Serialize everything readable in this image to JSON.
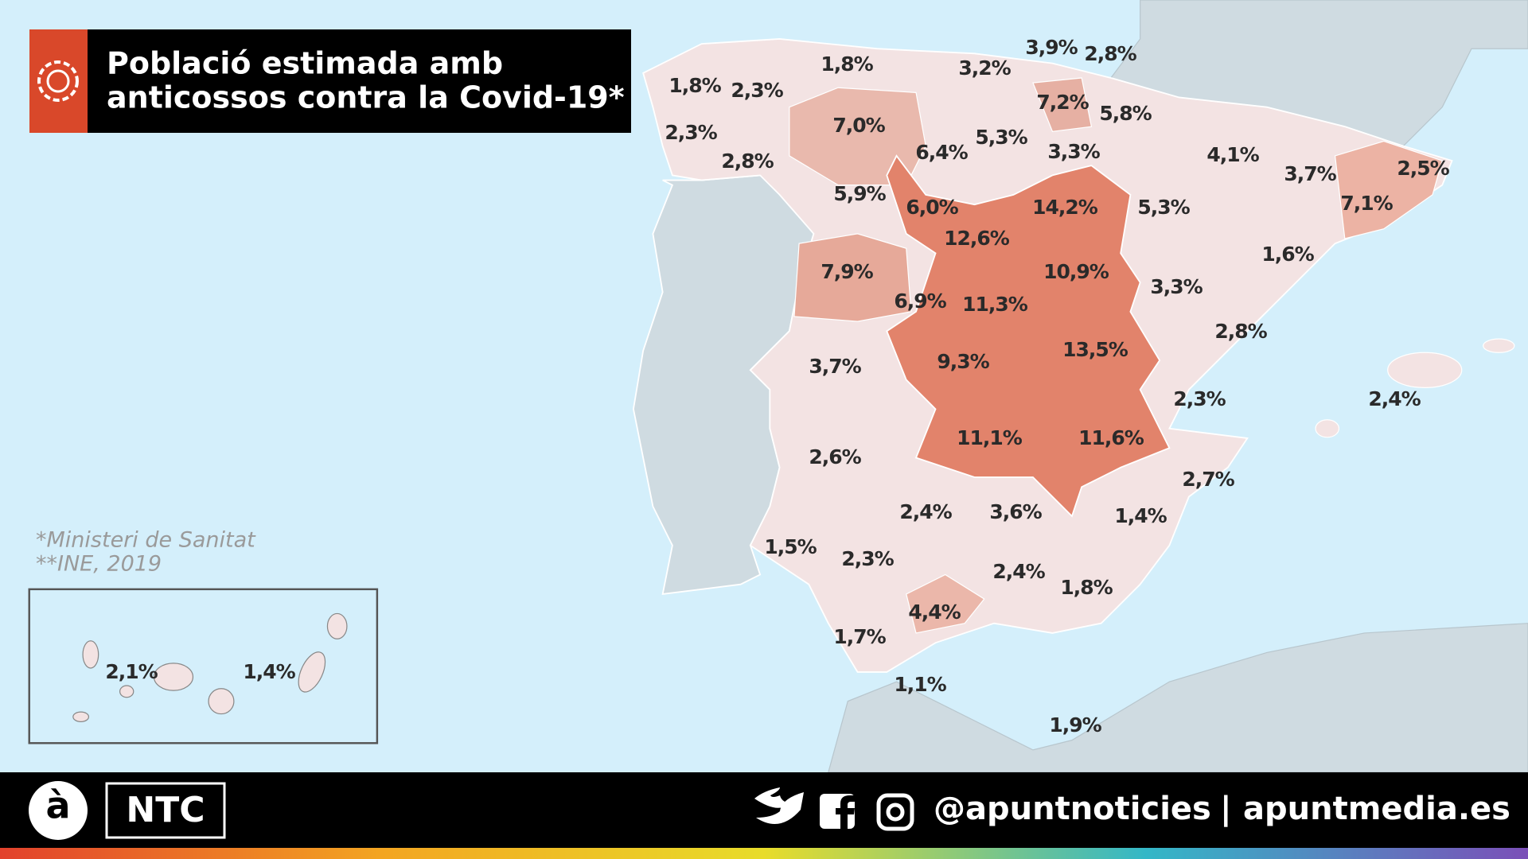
{
  "title_lines": [
    "Població estimada amb",
    "anticossos contra la Covid-19*"
  ],
  "notes": [
    "*Ministeri de Sanitat",
    "**INE, 2019"
  ],
  "region_labels": [
    "1,8%",
    "2,3%",
    "1,8%",
    "3,2%",
    "3,9%",
    "2,8%",
    "2,3%",
    "7,2%",
    "5,8%",
    "7,0%",
    "6,4%",
    "5,3%",
    "3,3%",
    "4,1%",
    "2,8%",
    "3,7%",
    "2,5%",
    "5,9%",
    "6,0%",
    "14,2%",
    "5,3%",
    "7,1%",
    "12,6%",
    "1,6%",
    "7,9%",
    "10,9%",
    "3,3%",
    "6,9%",
    "11,3%",
    "2,8%",
    "3,7%",
    "9,3%",
    "13,5%",
    "2,4%",
    "2,3%",
    "11,1%",
    "11,6%",
    "2,6%",
    "2,7%",
    "2,4%",
    "3,6%",
    "1,4%",
    "1,5%",
    "2,3%",
    "2,4%",
    "1,8%",
    "4,4%",
    "1,7%",
    "1,1%",
    "1,9%"
  ],
  "canary_labels": [
    "2,1%",
    "1,4%"
  ],
  "footer": {
    "logo": "à",
    "brand": "NTC",
    "handle": "@apuntnoticies",
    "separator": "|",
    "site": "apuntmedia.es"
  }
}
